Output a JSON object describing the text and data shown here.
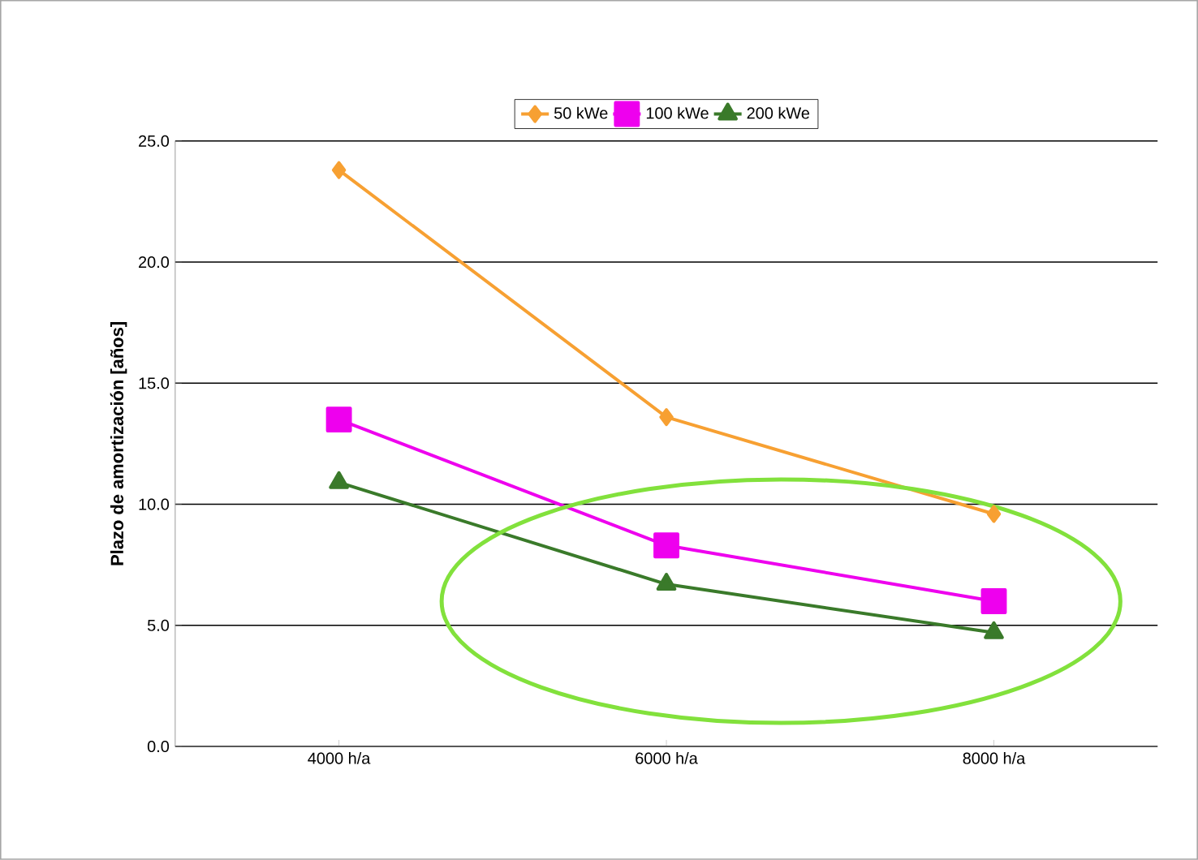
{
  "chart_data": {
    "type": "line",
    "ylabel": "Plazo de amortización [años]",
    "categories": [
      "4000 h/a",
      "6000 h/a",
      "8000 h/a"
    ],
    "series": [
      {
        "name": "50 kWe",
        "color": "#f7a032",
        "marker": "diamond",
        "values": [
          23.8,
          13.6,
          9.6
        ]
      },
      {
        "name": "100 kWe",
        "color": "#ee00ee",
        "marker": "square",
        "values": [
          13.5,
          8.3,
          6.0
        ]
      },
      {
        "name": "200 kWe",
        "color": "#3a7a2a",
        "marker": "triangle",
        "values": [
          10.9,
          6.7,
          4.7
        ]
      }
    ],
    "ylim": [
      0,
      25
    ],
    "yticks": [
      {
        "value": 0,
        "label": "0.0"
      },
      {
        "value": 5,
        "label": "5.0"
      },
      {
        "value": 10,
        "label": "10.0"
      },
      {
        "value": 15,
        "label": "15.0"
      },
      {
        "value": 20,
        "label": "20.0"
      },
      {
        "value": 25,
        "label": "25.0"
      }
    ],
    "grid": "y",
    "legend": "top",
    "line_style": "solid"
  }
}
